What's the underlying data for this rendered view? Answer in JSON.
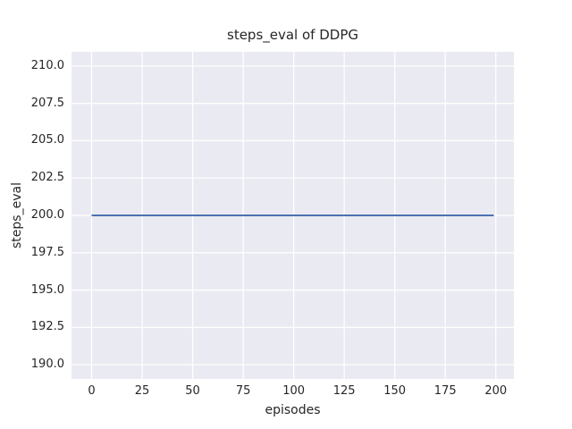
{
  "chart_data": {
    "type": "line",
    "title": "steps_eval of DDPG",
    "xlabel": "episodes",
    "ylabel": "steps_eval",
    "x": [
      0,
      199
    ],
    "series": [
      {
        "name": "steps_eval",
        "values": [
          200,
          200
        ],
        "color": "#4c72b0"
      }
    ],
    "xlim": [
      -9.95,
      208.95
    ],
    "ylim": [
      189.05,
      210.95
    ],
    "xticks": [
      0,
      25,
      50,
      75,
      100,
      125,
      150,
      175,
      200
    ],
    "yticks": [
      190.0,
      192.5,
      195.0,
      197.5,
      200.0,
      202.5,
      205.0,
      207.5,
      210.0
    ],
    "grid": true,
    "legend_visible": false,
    "style": {
      "plot_bg": "#eaeaf2",
      "grid_color": "#ffffff",
      "text_color": "#262626"
    }
  }
}
